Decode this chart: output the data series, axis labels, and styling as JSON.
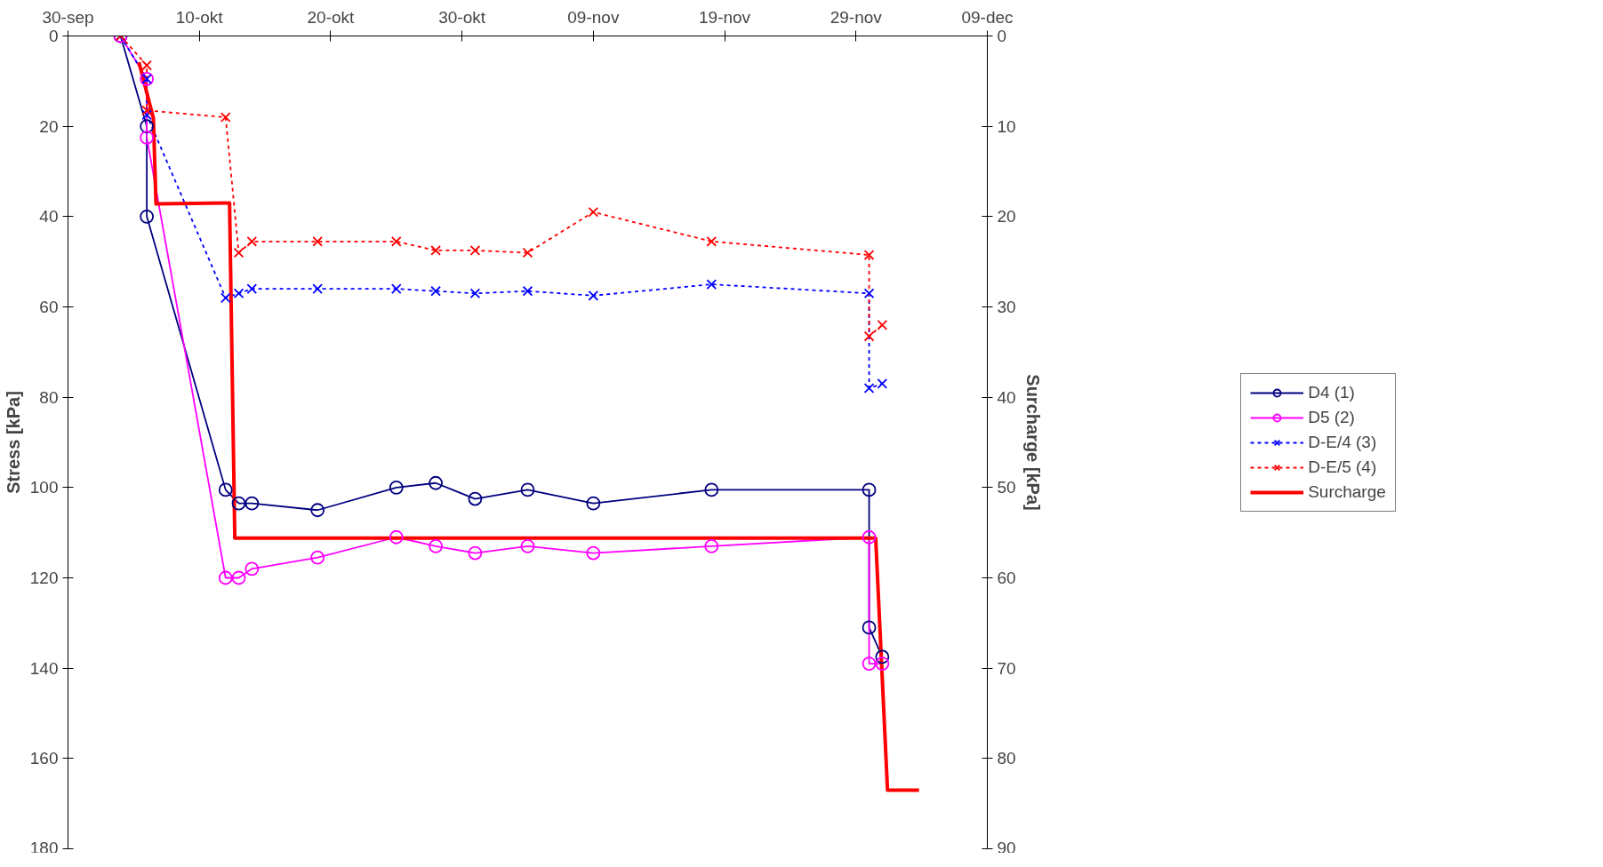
{
  "chart_data": {
    "type": "line",
    "xlabel": null,
    "ylabel": "Stress [kPa]",
    "y2label": "Surcharge [kPa]",
    "xlim": [
      0,
      70
    ],
    "xticks": [
      {
        "value": 0,
        "label": "30-sep"
      },
      {
        "value": 10,
        "label": "10-okt"
      },
      {
        "value": 20,
        "label": "20-okt"
      },
      {
        "value": 30,
        "label": "30-okt"
      },
      {
        "value": 40,
        "label": "09-nov"
      },
      {
        "value": 50,
        "label": "19-nov"
      },
      {
        "value": 60,
        "label": "29-nov"
      },
      {
        "value": 70,
        "label": "09-dec"
      }
    ],
    "ylim": [
      180,
      0
    ],
    "yticks": [
      0,
      20,
      40,
      60,
      80,
      100,
      120,
      140,
      160,
      180
    ],
    "y2lim": [
      90,
      0
    ],
    "y2ticks": [
      0,
      10,
      20,
      30,
      40,
      50,
      60,
      70,
      80,
      90
    ],
    "grid": false,
    "legend": "right",
    "series": [
      {
        "name": "D4 (1)",
        "color": "#000080",
        "marker": "circle",
        "line_style": "solid",
        "x": [
          4,
          6,
          6,
          12,
          13,
          14,
          19,
          25,
          28,
          31,
          35,
          40,
          49,
          61,
          61,
          62
        ],
        "values": [
          0,
          20,
          40,
          100.5,
          103.5,
          103.5,
          105,
          100,
          99,
          102.5,
          100.5,
          103.5,
          100.5,
          100.5,
          131,
          137.5
        ]
      },
      {
        "name": "D5 (2)",
        "color": "#ff00ff",
        "marker": "circle",
        "line_style": "solid",
        "x": [
          4,
          6,
          6,
          12,
          13,
          14,
          19,
          25,
          28,
          31,
          35,
          40,
          49,
          61,
          61,
          62
        ],
        "values": [
          0,
          9.5,
          22.5,
          120,
          120,
          118,
          115.5,
          111,
          113,
          114.5,
          113,
          114.5,
          113,
          111,
          139,
          139
        ]
      },
      {
        "name": "D-E/4 (3)",
        "color": "#0000ff",
        "marker": "cross",
        "line_style": "dotted",
        "x": [
          4,
          6,
          6,
          12,
          13,
          14,
          19,
          25,
          28,
          31,
          35,
          40,
          49,
          61,
          61,
          62
        ],
        "values": [
          0,
          9.5,
          17.5,
          58,
          57,
          56,
          56,
          56,
          56.5,
          57,
          56.5,
          57.5,
          55,
          57,
          78,
          77
        ]
      },
      {
        "name": "D-E/5 (4)",
        "color": "#ff0000",
        "marker": "cross",
        "line_style": "dotted",
        "x": [
          4,
          6,
          6,
          12,
          13,
          14,
          19,
          25,
          28,
          31,
          35,
          40,
          49,
          61,
          61,
          62
        ],
        "values": [
          0,
          6.5,
          16.5,
          18,
          48,
          45.5,
          45.5,
          45.5,
          47.5,
          47.5,
          48,
          39,
          45.5,
          48.5,
          66.5,
          64
        ]
      },
      {
        "name": "Surcharge",
        "color": "#ff0000",
        "marker": "none",
        "line_style": "solid",
        "axis": "y2",
        "x": [
          5.4,
          6.5,
          6.7,
          12.3,
          12.7,
          61.5,
          62.4,
          64.8
        ],
        "values": [
          2.9,
          9.1,
          18.6,
          18.5,
          55.6,
          55.6,
          83.5,
          83.5
        ]
      }
    ]
  }
}
